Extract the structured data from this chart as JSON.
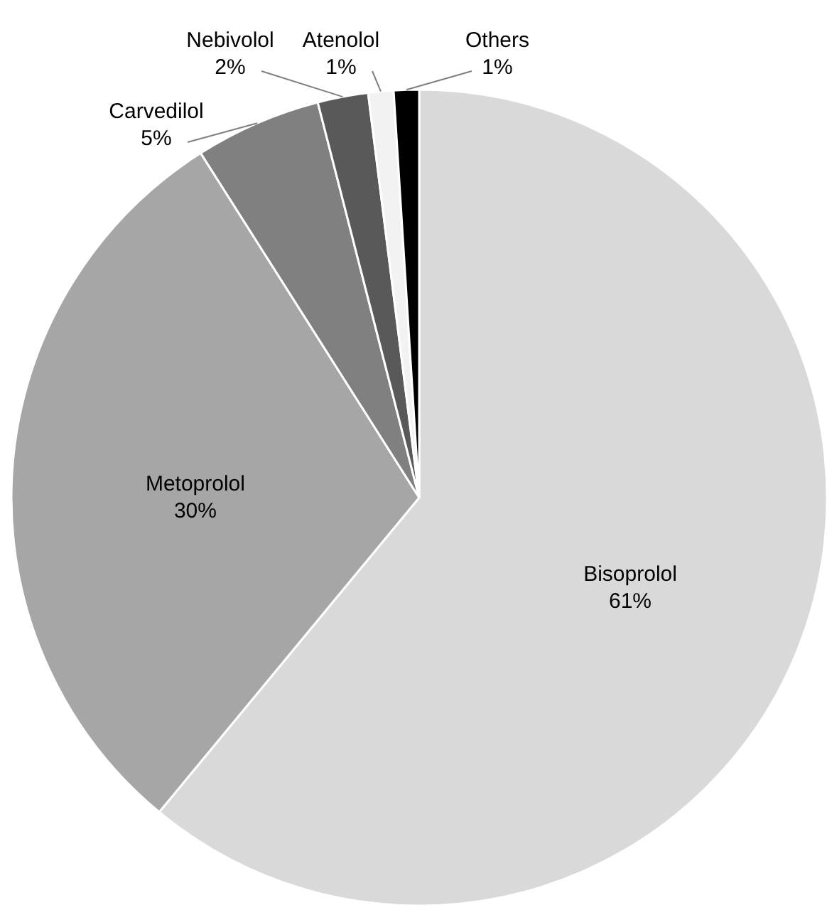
{
  "chart_data": {
    "type": "pie",
    "categories": [
      "Bisoprolol",
      "Metoprolol",
      "Carvedilol",
      "Nebivolol",
      "Atenolol",
      "Others"
    ],
    "values": [
      61,
      30,
      5,
      2,
      1,
      1
    ],
    "value_labels": [
      "61%",
      "30%",
      "5%",
      "2%",
      "1%",
      "1%"
    ],
    "colors": [
      "#d9d9d9",
      "#a6a6a6",
      "#808080",
      "#595959",
      "#f2f2f2",
      "#000000"
    ],
    "legend": false
  }
}
